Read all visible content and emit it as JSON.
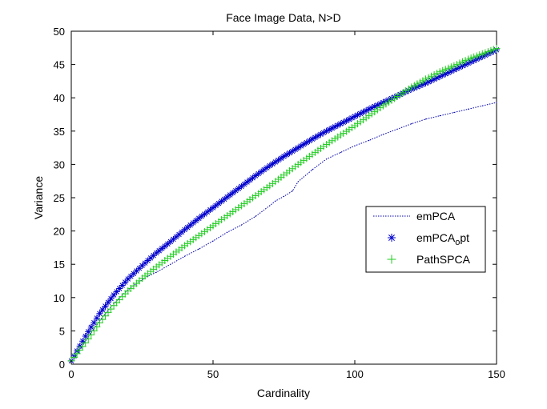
{
  "chart_data": {
    "type": "line",
    "title": "Face Image Data, N>D",
    "xlabel": "Cardinality",
    "ylabel": "Variance",
    "xlim": [
      0,
      150
    ],
    "ylim": [
      0,
      50
    ],
    "xticks": [
      0,
      50,
      100,
      150
    ],
    "yticks": [
      0,
      5,
      10,
      15,
      20,
      25,
      30,
      35,
      40,
      45,
      50
    ],
    "grid": false,
    "legend_position": "right-center",
    "series": [
      {
        "name": "emPCA",
        "style": "dotted-line",
        "color": "#0000aa",
        "x": [
          1,
          2,
          4,
          6,
          8,
          10,
          12,
          15,
          18,
          21,
          24,
          27,
          30,
          35,
          40,
          45,
          50,
          55,
          60,
          65,
          70,
          72,
          75,
          78,
          80,
          85,
          90,
          95,
          100,
          105,
          110,
          115,
          120,
          125,
          130,
          135,
          140,
          145,
          150
        ],
        "y": [
          0.8,
          1.5,
          2.8,
          4.1,
          5.3,
          6.5,
          7.6,
          9.1,
          10.4,
          11.5,
          12.4,
          13.2,
          13.8,
          15.0,
          16.2,
          17.3,
          18.5,
          19.8,
          20.9,
          22.2,
          23.8,
          24.5,
          25.2,
          26.0,
          27.4,
          29.2,
          30.8,
          31.8,
          32.8,
          33.6,
          34.5,
          35.3,
          36.1,
          36.8,
          37.3,
          37.8,
          38.3,
          38.8,
          39.3
        ]
      },
      {
        "name": "emPCA",
        "name_subscript": "o",
        "name_suffix": "pt",
        "style": "asterisk-markers",
        "color": "#0000cc",
        "x": [
          0,
          5,
          10,
          15,
          20,
          25,
          30,
          35,
          40,
          45,
          50,
          55,
          60,
          65,
          70,
          75,
          80,
          85,
          90,
          95,
          100,
          105,
          110,
          115,
          120,
          125,
          130,
          135,
          140,
          145,
          150
        ],
        "y": [
          0.5,
          4.2,
          7.6,
          10.4,
          12.8,
          14.8,
          16.7,
          18.4,
          20.2,
          21.9,
          23.5,
          25.1,
          26.7,
          28.3,
          29.8,
          31.2,
          32.5,
          33.8,
          35.0,
          36.1,
          37.2,
          38.3,
          39.3,
          40.3,
          41.3,
          42.2,
          43.2,
          44.2,
          45.2,
          46.2,
          47.2
        ]
      },
      {
        "name": "PathSPCA",
        "style": "plus-markers",
        "color": "#22cc22",
        "x": [
          0,
          5,
          10,
          15,
          20,
          25,
          30,
          35,
          40,
          45,
          50,
          55,
          60,
          65,
          70,
          75,
          80,
          85,
          90,
          95,
          100,
          105,
          110,
          115,
          120,
          125,
          130,
          135,
          140,
          145,
          150
        ],
        "y": [
          0.5,
          3.2,
          6.2,
          8.8,
          11.0,
          12.9,
          14.6,
          16.2,
          17.8,
          19.3,
          20.8,
          22.3,
          23.8,
          25.3,
          26.8,
          28.4,
          30.0,
          31.5,
          33.0,
          34.4,
          35.8,
          37.3,
          38.8,
          40.2,
          41.6,
          42.8,
          43.9,
          44.8,
          45.8,
          46.6,
          47.4
        ]
      }
    ]
  }
}
